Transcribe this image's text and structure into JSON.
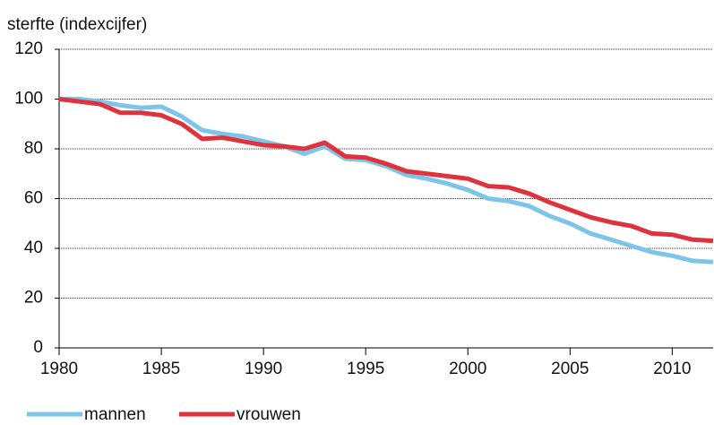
{
  "chart_data": {
    "type": "line",
    "title": "sterfte (indexcijfer)",
    "x": [
      1980,
      1981,
      1982,
      1983,
      1984,
      1985,
      1986,
      1987,
      1988,
      1989,
      1990,
      1991,
      1992,
      1993,
      1994,
      1995,
      1996,
      1997,
      1998,
      1999,
      2000,
      2001,
      2002,
      2003,
      2004,
      2005,
      2006,
      2007,
      2008,
      2009,
      2010,
      2011,
      2012
    ],
    "series": [
      {
        "name": "mannen",
        "color": "#7dc4ea",
        "values": [
          100,
          100,
          99,
          97.5,
          96.5,
          97,
          93,
          87.5,
          86,
          85,
          83,
          81,
          78,
          81,
          76,
          75.5,
          73,
          69.5,
          68,
          66,
          63.5,
          60,
          59,
          57,
          53,
          50,
          46,
          43.5,
          41,
          38.5,
          37,
          35,
          34.5
        ]
      },
      {
        "name": "vrouwen",
        "color": "#e0323c",
        "values": [
          100,
          99,
          98,
          94.5,
          94.5,
          93.5,
          90,
          84,
          84.5,
          83,
          81.5,
          81,
          80,
          82.5,
          77,
          76.5,
          74,
          71,
          70,
          69,
          68,
          65,
          64.5,
          62,
          58.5,
          55.5,
          52.5,
          50.5,
          49,
          46,
          45.5,
          43.5,
          43
        ]
      }
    ],
    "xlim": [
      1980,
      2012
    ],
    "xticks": [
      1980,
      1985,
      1990,
      1995,
      2000,
      2005,
      2010
    ],
    "ylim": [
      0,
      120
    ],
    "yticks": [
      0,
      20,
      40,
      60,
      80,
      100,
      120
    ],
    "grid": true
  }
}
